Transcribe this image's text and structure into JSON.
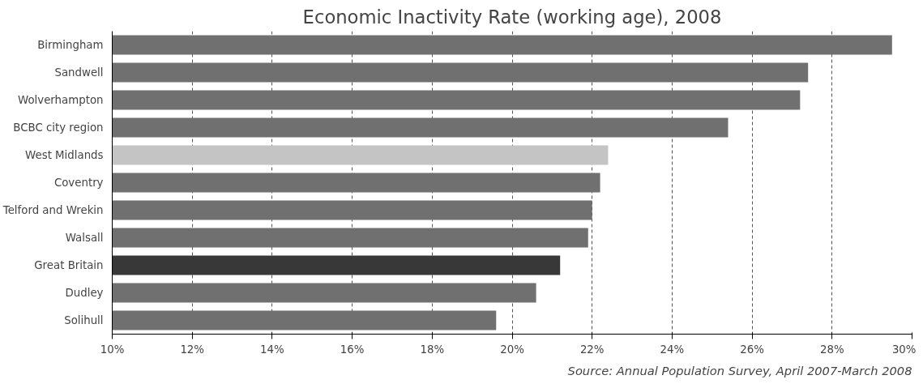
{
  "chart_data": {
    "type": "bar",
    "orientation": "horizontal",
    "title": "Economic Inactivity Rate (working age), 2008",
    "categories": [
      "Birmingham",
      "Sandwell",
      "Wolverhampton",
      "BCBC city region",
      "West Midlands",
      "Coventry",
      "Telford and Wrekin",
      "Walsall",
      "Great Britain",
      "Dudley",
      "Solihull"
    ],
    "values": [
      29.5,
      27.4,
      27.2,
      25.4,
      22.4,
      22.2,
      22.0,
      21.9,
      21.2,
      20.6,
      19.6
    ],
    "colors": [
      "#707070",
      "#707070",
      "#707070",
      "#707070",
      "#c4c4c4",
      "#707070",
      "#707070",
      "#707070",
      "#383838",
      "#707070",
      "#707070"
    ],
    "xlim": [
      10,
      30
    ],
    "xticks": [
      {
        "value": 10,
        "label": "10%"
      },
      {
        "value": 12,
        "label": "12%"
      },
      {
        "value": 14,
        "label": "14%"
      },
      {
        "value": 16,
        "label": "16%"
      },
      {
        "value": 18,
        "label": "18%"
      },
      {
        "value": 20,
        "label": "20%"
      },
      {
        "value": 22,
        "label": "22%"
      },
      {
        "value": 24,
        "label": "24%"
      },
      {
        "value": 26,
        "label": "26%"
      },
      {
        "value": 28,
        "label": "28%"
      },
      {
        "value": 30,
        "label": "30%"
      }
    ],
    "grid": "x",
    "annotations": [
      "Source: Annual Population Survey, April 2007-March 2008"
    ]
  }
}
